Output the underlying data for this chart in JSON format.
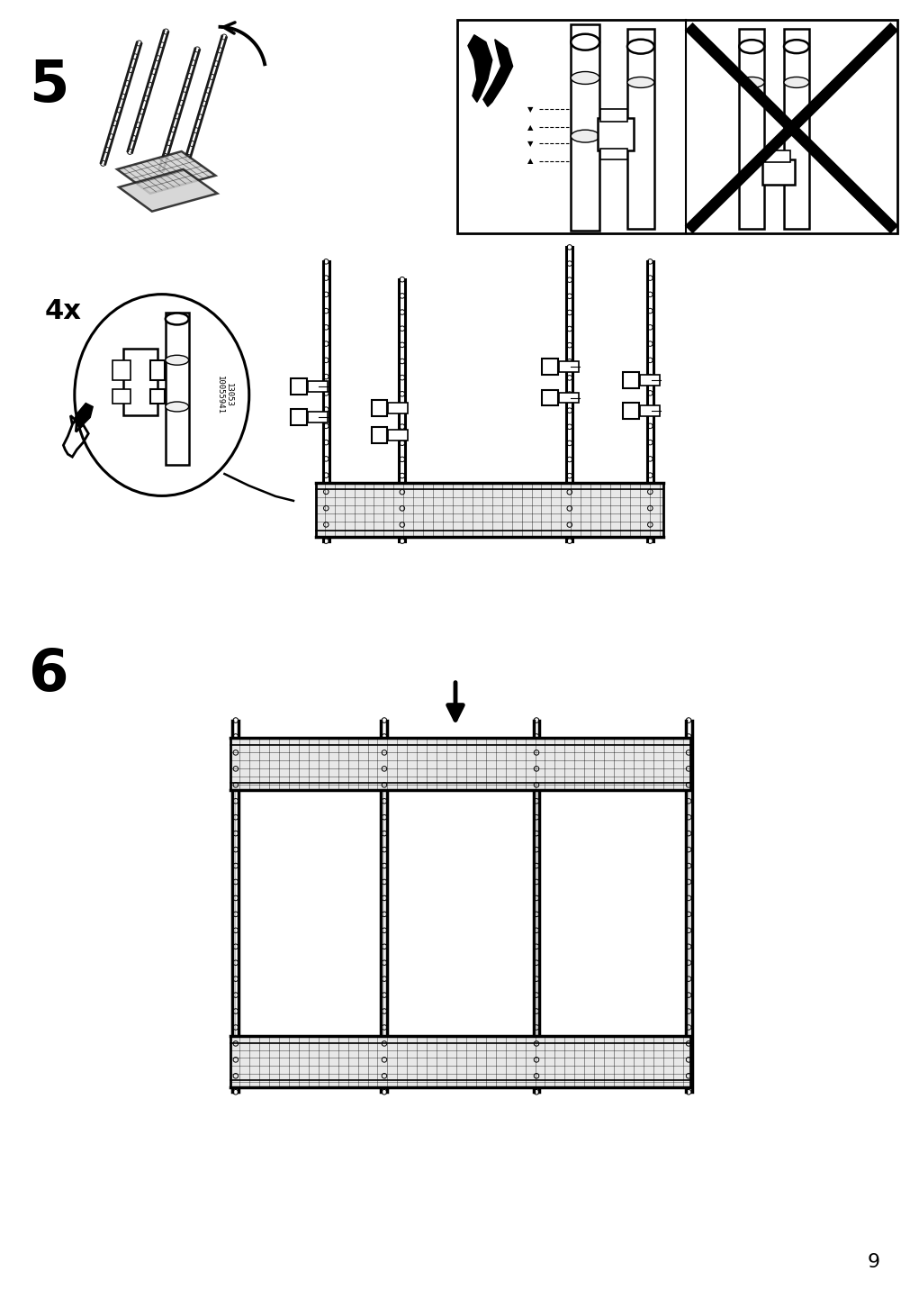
{
  "bg_color": "#ffffff",
  "page_number": "9",
  "step5_label": "5",
  "step6_label": "6",
  "qty_label": "4x",
  "part_number_line1": "13053",
  "part_number_line2": "10055941"
}
